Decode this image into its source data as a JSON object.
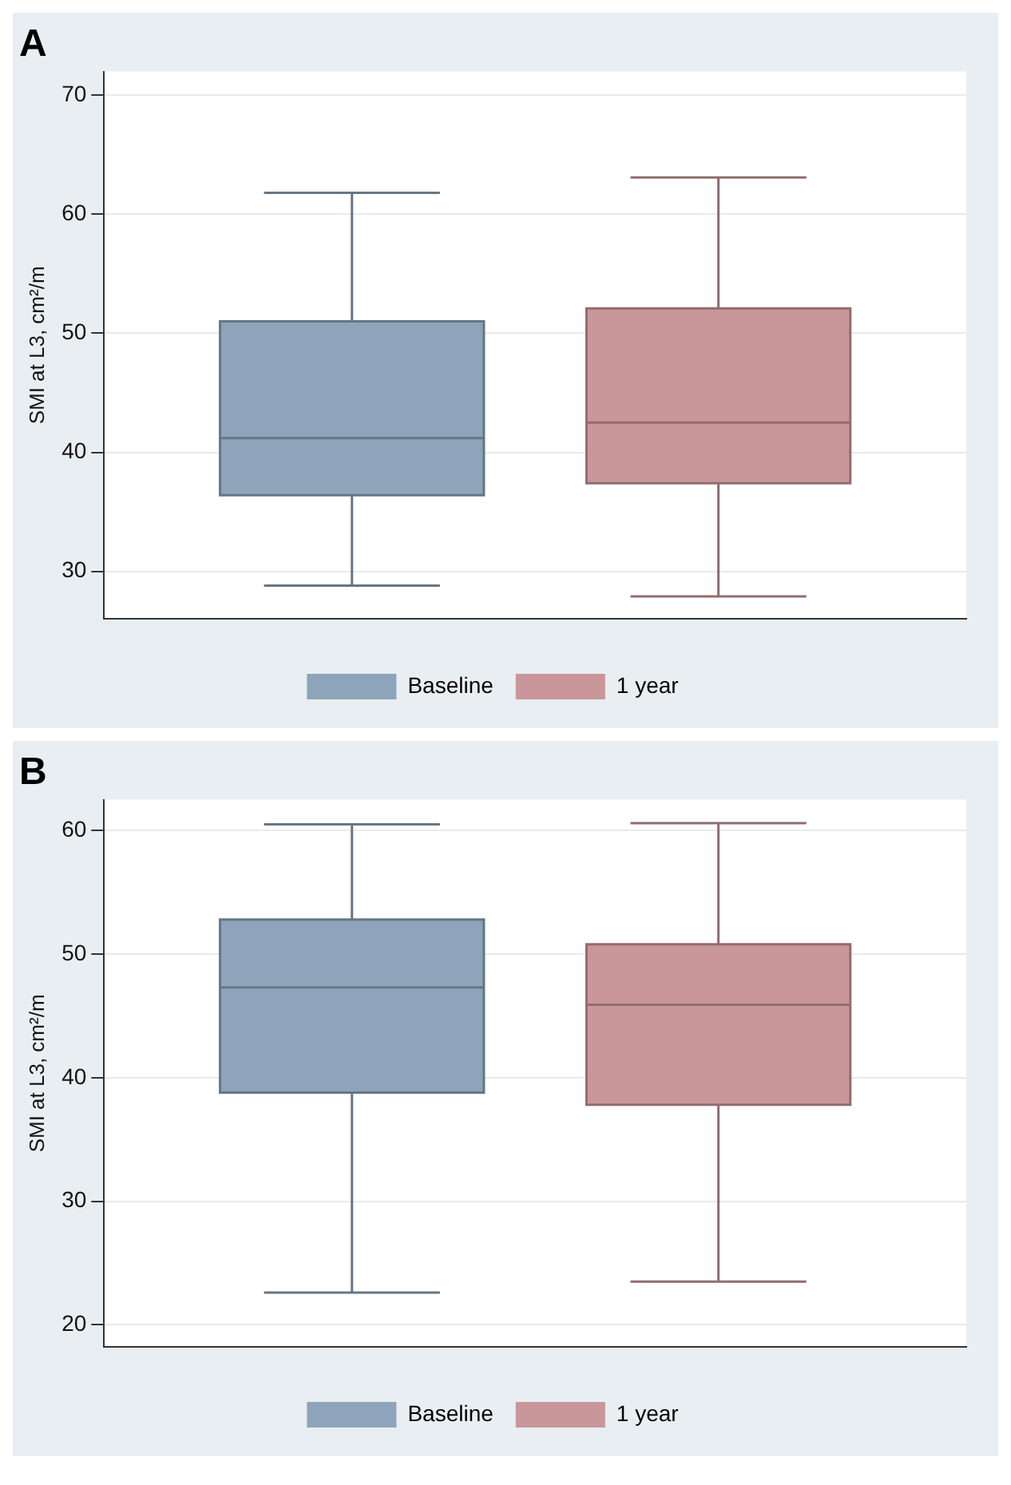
{
  "chart_data": [
    {
      "type": "box",
      "title": "A",
      "ylabel": "SMI at L3, cm²/m",
      "categories": [
        null
      ],
      "ylim": [
        26,
        72
      ],
      "yticks": [
        30,
        40,
        50,
        60,
        70
      ],
      "grid": "y",
      "legend": "bottom",
      "series": [
        {
          "name": "Baseline",
          "color": "#8da4ba",
          "boxes": [
            {
              "low": 28.8,
              "q1": 36.4,
              "median": 41.2,
              "q3": 51.0,
              "high": 61.8
            }
          ]
        },
        {
          "name": "1 year",
          "color": "#c9979a",
          "boxes": [
            {
              "low": 27.9,
              "q1": 37.4,
              "median": 42.5,
              "q3": 52.1,
              "high": 63.1
            }
          ]
        }
      ]
    },
    {
      "type": "box",
      "title": "B",
      "ylabel": "SMI at L3, cm²/m",
      "categories": [
        null
      ],
      "ylim": [
        18.2,
        62.5
      ],
      "yticks": [
        20,
        30,
        40,
        50,
        60
      ],
      "grid": "y",
      "legend": "bottom",
      "series": [
        {
          "name": "Baseline",
          "color": "#8da4ba",
          "boxes": [
            {
              "low": 22.6,
              "q1": 38.8,
              "median": 47.3,
              "q3": 52.8,
              "high": 60.5
            }
          ]
        },
        {
          "name": "1 year",
          "color": "#c9979a",
          "boxes": [
            {
              "low": 23.5,
              "q1": 37.8,
              "median": 45.9,
              "q3": 50.8,
              "high": 60.6
            }
          ]
        }
      ]
    }
  ]
}
